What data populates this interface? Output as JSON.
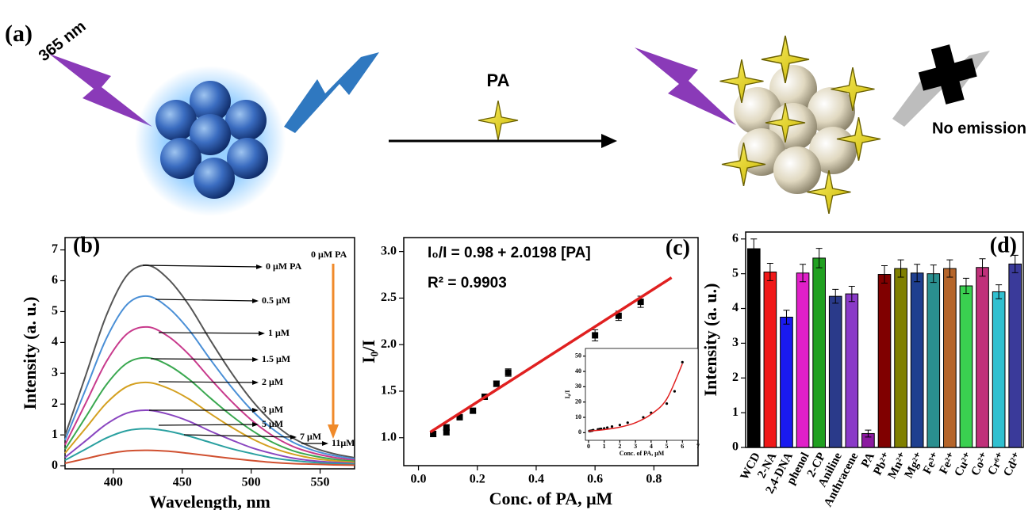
{
  "schematic": {
    "label": "(a)",
    "excitation": "365 nm",
    "analyte": "PA",
    "result": "No emission"
  },
  "chart_data": [
    {
      "type": "line",
      "title": "(b)",
      "xlabel": "Wavelength, nm",
      "ylabel": "Intensity (a. u.)",
      "xlim": [
        365,
        575
      ],
      "xticks": [
        400,
        450,
        500,
        550
      ],
      "ylim": [
        -0.1,
        7.4
      ],
      "yticks": [
        0,
        1,
        2,
        3,
        4,
        5,
        6,
        7
      ],
      "annotations": [
        "0 μM PA",
        "0.5 μM",
        "1 μM",
        "1.5 μM",
        "2 μM",
        "3 μM",
        "5 μM",
        "7 μM",
        "11μM"
      ],
      "arrow_label": "0 μM PA",
      "arrow_color": "#f08a2a",
      "x": [
        365,
        380,
        395,
        410,
        425,
        440,
        455,
        470,
        485,
        500,
        515,
        530,
        545,
        560,
        575
      ],
      "series": [
        {
          "color": "#555555",
          "values": [
            0.98,
            2.93,
            4.88,
            6.18,
            6.5,
            6.05,
            5.2,
            4.1,
            3.06,
            2.15,
            1.43,
            0.91,
            0.59,
            0.39,
            0.26
          ]
        },
        {
          "color": "#4a8fd6",
          "values": [
            0.83,
            2.48,
            4.13,
            5.23,
            5.5,
            5.12,
            4.4,
            3.47,
            2.59,
            1.82,
            1.21,
            0.77,
            0.5,
            0.33,
            0.22
          ]
        },
        {
          "color": "#c83a8c",
          "values": [
            0.68,
            2.03,
            3.38,
            4.28,
            4.5,
            4.19,
            3.6,
            2.84,
            2.12,
            1.49,
            0.99,
            0.63,
            0.41,
            0.27,
            0.18
          ]
        },
        {
          "color": "#3aa850",
          "values": [
            0.53,
            1.58,
            2.63,
            3.33,
            3.5,
            3.26,
            2.8,
            2.21,
            1.65,
            1.16,
            0.77,
            0.49,
            0.32,
            0.21,
            0.14
          ]
        },
        {
          "color": "#d4a020",
          "values": [
            0.41,
            1.22,
            2.03,
            2.57,
            2.7,
            2.51,
            2.16,
            1.7,
            1.27,
            0.89,
            0.59,
            0.38,
            0.24,
            0.16,
            0.11
          ]
        },
        {
          "color": "#8a46c0",
          "values": [
            0.27,
            0.81,
            1.35,
            1.71,
            1.8,
            1.67,
            1.44,
            1.13,
            0.85,
            0.59,
            0.4,
            0.25,
            0.16,
            0.11,
            0.07
          ]
        },
        {
          "color": "#2aa0a0",
          "values": [
            0.18,
            0.54,
            0.9,
            1.14,
            1.2,
            1.12,
            0.96,
            0.76,
            0.56,
            0.4,
            0.26,
            0.17,
            0.11,
            0.07,
            0.05
          ]
        },
        {
          "color": "#d05030",
          "values": [
            0.08,
            0.23,
            0.38,
            0.48,
            0.5,
            0.47,
            0.4,
            0.32,
            0.24,
            0.17,
            0.11,
            0.07,
            0.05,
            0.03,
            0.02
          ]
        }
      ]
    },
    {
      "type": "scatter",
      "title": "(c)",
      "xlabel": "Conc. of PA, μM",
      "ylabel": "I₀/I",
      "annotations": [
        "I₀/I = 0.98 + 2.0198 [PA]",
        "R² = 0.9903"
      ],
      "xlim": [
        -0.05,
        0.95
      ],
      "xticks": [
        {
          "value": 0,
          "label": "0.0"
        },
        0.2,
        0.4,
        0.6,
        0.8
      ],
      "ylim": [
        0.7,
        3.15
      ],
      "yticks": [
        {
          "value": 1,
          "label": "1.0"
        },
        1.5,
        {
          "value": 2,
          "label": "2.0"
        },
        2.5,
        {
          "value": 3,
          "label": "3.0"
        }
      ],
      "series": [
        {
          "marker": "square",
          "color": "#000000",
          "x": [
            0.05,
            0.095,
            0.095,
            0.14,
            0.185,
            0.225,
            0.265,
            0.305,
            0.6,
            0.68,
            0.755
          ],
          "values": [
            1.04,
            1.06,
            1.11,
            1.22,
            1.29,
            1.44,
            1.58,
            1.7,
            2.1,
            2.31,
            2.46
          ],
          "errors": [
            0.03,
            0.03,
            0.03,
            0.02,
            0.02,
            0.03,
            0.03,
            0.04,
            0.06,
            0.05,
            0.06
          ]
        },
        {
          "marker": "line",
          "color": "#e02020",
          "x": [
            0.04,
            0.86
          ],
          "values": [
            1.06,
            2.72
          ]
        }
      ]
    },
    {
      "type": "bar",
      "title": "(d)",
      "ylabel": "Intensity (a. u.)",
      "ylim": [
        0,
        6.2
      ],
      "yticks": [
        0,
        1,
        2,
        3,
        4,
        5,
        6
      ],
      "categories": [
        "WCD",
        "2-NA",
        "2,4-DNA",
        "phenol",
        "2-CP",
        "Aniline",
        "Anthracene",
        "PA",
        "Pb²⁺",
        "Mn²⁺",
        "Mg²⁺",
        "Fe³⁺",
        "Fe²⁺",
        "Cu²⁺",
        "Co²⁺",
        "Cr⁶⁺",
        "Cd²⁺"
      ],
      "values": [
        5.72,
        5.05,
        3.75,
        5.02,
        5.45,
        4.35,
        4.42,
        0.4,
        4.98,
        5.15,
        5.02,
        5.0,
        5.15,
        4.65,
        5.18,
        4.48,
        5.28
      ],
      "errors": [
        0.28,
        0.25,
        0.2,
        0.25,
        0.28,
        0.2,
        0.22,
        0.1,
        0.25,
        0.25,
        0.25,
        0.25,
        0.25,
        0.22,
        0.25,
        0.2,
        0.25
      ],
      "colors": [
        "#000000",
        "#f01818",
        "#1a1af0",
        "#e020c8",
        "#20a020",
        "#2a3a8a",
        "#8a3ac8",
        "#8b1aa0",
        "#800000",
        "#808000",
        "#1f3f8f",
        "#2a8f8f",
        "#b5652a",
        "#3ad050",
        "#c0307a",
        "#30c0d0",
        "#3a3a9a"
      ]
    },
    {
      "type": "scatter",
      "inset": true,
      "xlabel": "Conc. of PA, μM",
      "ylabel": "I₀/I",
      "xlim": [
        -0.2,
        7
      ],
      "xticks": [
        0,
        1,
        2,
        3,
        4,
        5,
        6,
        7
      ],
      "ylim": [
        -5,
        55
      ],
      "yticks": [
        0,
        10,
        20,
        30,
        40,
        50
      ],
      "series": [
        {
          "marker": "dot",
          "color": "#000000",
          "x": [
            0.05,
            0.1,
            0.15,
            0.2,
            0.25,
            0.3,
            0.6,
            0.7,
            0.8,
            1,
            1.2,
            1.5,
            2,
            2.5,
            3.5,
            4,
            5,
            5.5,
            6
          ],
          "values": [
            1.05,
            1.1,
            1.2,
            1.3,
            1.4,
            1.7,
            2.1,
            2.3,
            2.5,
            2.8,
            3.3,
            4,
            5,
            6.5,
            10,
            13,
            19,
            27,
            46
          ]
        },
        {
          "marker": "line",
          "color": "#e02020",
          "x": [
            0,
            1,
            2,
            3,
            4,
            5,
            6
          ],
          "values": [
            1,
            2,
            3.6,
            6.5,
            12,
            22,
            45
          ]
        }
      ]
    }
  ]
}
